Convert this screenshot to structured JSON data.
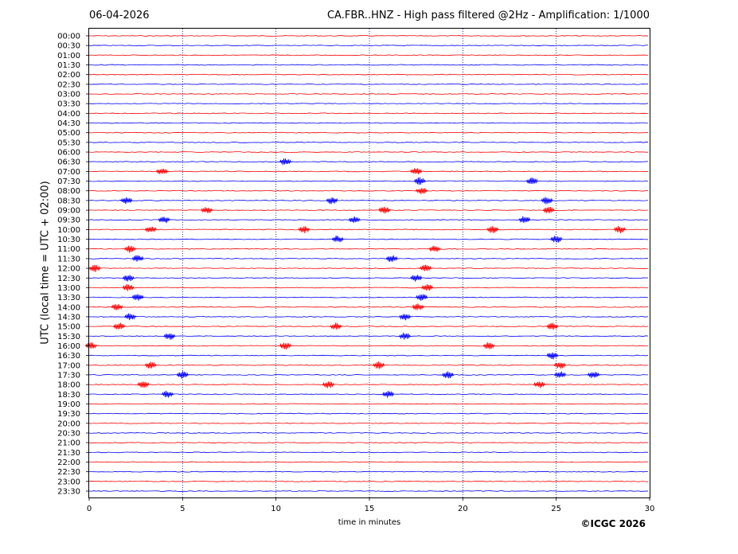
{
  "header": {
    "date": "06-04-2026",
    "title": "CA.FBR..HNZ - High pass filtered @2Hz - Amplification: 1/1000"
  },
  "footer": {
    "copyright": "©ICGC 2026"
  },
  "chart_data": {
    "type": "line",
    "title": "CA.FBR..HNZ - High pass filtered @2Hz - Amplification: 1/1000",
    "xlabel": "time in minutes",
    "ylabel": "UTC (local time = UTC + 02:00)",
    "xlim": [
      0,
      30
    ],
    "x_ticks": [
      0,
      5,
      10,
      15,
      20,
      25,
      30
    ],
    "x_tick_labels": [
      "0",
      "5",
      "10",
      "15",
      "20",
      "25",
      "30"
    ],
    "grid": "vertical dotted at x ticks",
    "trace_colors": [
      "#ff0000",
      "#0000ff"
    ],
    "trace_labels": [
      "00:00",
      "00:30",
      "01:00",
      "01:30",
      "02:00",
      "02:30",
      "03:00",
      "03:30",
      "04:00",
      "04:30",
      "05:00",
      "05:30",
      "06:00",
      "06:30",
      "07:00",
      "07:30",
      "08:00",
      "08:30",
      "09:00",
      "09:30",
      "10:00",
      "10:30",
      "11:00",
      "11:30",
      "12:00",
      "12:30",
      "13:00",
      "13:30",
      "14:00",
      "14:30",
      "15:00",
      "15:30",
      "16:00",
      "16:30",
      "17:00",
      "17:30",
      "18:00",
      "18:30",
      "19:00",
      "19:30",
      "20:00",
      "20:30",
      "21:00",
      "21:30",
      "22:00",
      "22:30",
      "23:00",
      "23:30"
    ],
    "events": [
      {
        "trace": "06:30",
        "minute": 10.5
      },
      {
        "trace": "07:00",
        "minute": 3.9
      },
      {
        "trace": "07:00",
        "minute": 17.5
      },
      {
        "trace": "07:30",
        "minute": 17.7
      },
      {
        "trace": "07:30",
        "minute": 23.7
      },
      {
        "trace": "08:00",
        "minute": 17.8
      },
      {
        "trace": "08:30",
        "minute": 2.0
      },
      {
        "trace": "08:30",
        "minute": 13.0
      },
      {
        "trace": "08:30",
        "minute": 24.5
      },
      {
        "trace": "09:00",
        "minute": 6.3
      },
      {
        "trace": "09:00",
        "minute": 15.8
      },
      {
        "trace": "09:00",
        "minute": 24.6
      },
      {
        "trace": "09:30",
        "minute": 4.0
      },
      {
        "trace": "09:30",
        "minute": 14.2
      },
      {
        "trace": "09:30",
        "minute": 23.3
      },
      {
        "trace": "10:00",
        "minute": 3.3
      },
      {
        "trace": "10:00",
        "minute": 11.5
      },
      {
        "trace": "10:00",
        "minute": 21.6
      },
      {
        "trace": "10:00",
        "minute": 28.4
      },
      {
        "trace": "10:30",
        "minute": 13.3
      },
      {
        "trace": "10:30",
        "minute": 25.0
      },
      {
        "trace": "11:00",
        "minute": 2.2
      },
      {
        "trace": "11:00",
        "minute": 18.5
      },
      {
        "trace": "11:30",
        "minute": 2.6
      },
      {
        "trace": "11:30",
        "minute": 16.2
      },
      {
        "trace": "12:00",
        "minute": 0.3
      },
      {
        "trace": "12:00",
        "minute": 18.0
      },
      {
        "trace": "12:30",
        "minute": 2.1
      },
      {
        "trace": "12:30",
        "minute": 17.5
      },
      {
        "trace": "13:00",
        "minute": 2.1
      },
      {
        "trace": "13:00",
        "minute": 18.1
      },
      {
        "trace": "13:30",
        "minute": 2.6
      },
      {
        "trace": "13:30",
        "minute": 17.8
      },
      {
        "trace": "14:00",
        "minute": 1.5
      },
      {
        "trace": "14:00",
        "minute": 17.6
      },
      {
        "trace": "14:30",
        "minute": 2.2
      },
      {
        "trace": "14:30",
        "minute": 16.9
      },
      {
        "trace": "15:00",
        "minute": 1.6
      },
      {
        "trace": "15:00",
        "minute": 13.2
      },
      {
        "trace": "15:00",
        "minute": 24.8
      },
      {
        "trace": "15:30",
        "minute": 4.3
      },
      {
        "trace": "15:30",
        "minute": 16.9
      },
      {
        "trace": "16:00",
        "minute": 0.1
      },
      {
        "trace": "16:00",
        "minute": 10.5
      },
      {
        "trace": "16:00",
        "minute": 21.4
      },
      {
        "trace": "16:30",
        "minute": 24.8
      },
      {
        "trace": "17:00",
        "minute": 3.3
      },
      {
        "trace": "17:00",
        "minute": 15.5
      },
      {
        "trace": "17:00",
        "minute": 25.2
      },
      {
        "trace": "17:30",
        "minute": 5.0
      },
      {
        "trace": "17:30",
        "minute": 19.2
      },
      {
        "trace": "17:30",
        "minute": 25.2
      },
      {
        "trace": "17:30",
        "minute": 27.0
      },
      {
        "trace": "18:00",
        "minute": 2.9
      },
      {
        "trace": "18:00",
        "minute": 12.8
      },
      {
        "trace": "18:00",
        "minute": 24.1
      },
      {
        "trace": "18:30",
        "minute": 4.2
      },
      {
        "trace": "18:30",
        "minute": 16.0
      }
    ]
  }
}
